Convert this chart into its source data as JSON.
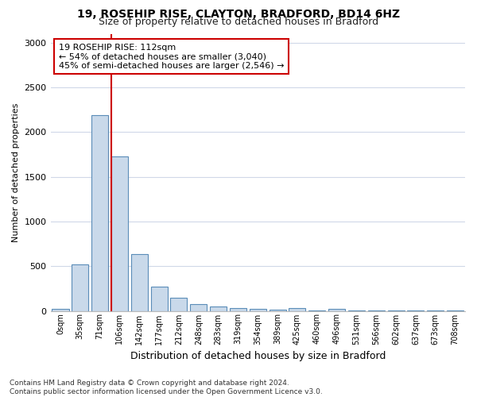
{
  "title1": "19, ROSEHIP RISE, CLAYTON, BRADFORD, BD14 6HZ",
  "title2": "Size of property relative to detached houses in Bradford",
  "xlabel": "Distribution of detached houses by size in Bradford",
  "ylabel": "Number of detached properties",
  "categories": [
    "0sqm",
    "35sqm",
    "71sqm",
    "106sqm",
    "142sqm",
    "177sqm",
    "212sqm",
    "248sqm",
    "283sqm",
    "319sqm",
    "354sqm",
    "389sqm",
    "425sqm",
    "460sqm",
    "496sqm",
    "531sqm",
    "566sqm",
    "602sqm",
    "637sqm",
    "673sqm",
    "708sqm"
  ],
  "values": [
    25,
    520,
    2190,
    1730,
    635,
    270,
    145,
    75,
    50,
    35,
    18,
    12,
    30,
    8,
    25,
    3,
    2,
    2,
    1,
    1,
    1
  ],
  "bar_color": "#c9d9ea",
  "bar_edge_color": "#5b8db8",
  "vline_color": "#cc0000",
  "vline_index": 3,
  "annotation_text": "19 ROSEHIP RISE: 112sqm\n← 54% of detached houses are smaller (3,040)\n45% of semi-detached houses are larger (2,546) →",
  "annotation_box_facecolor": "#ffffff",
  "annotation_box_edgecolor": "#cc0000",
  "ylim": [
    0,
    3100
  ],
  "yticks": [
    0,
    500,
    1000,
    1500,
    2000,
    2500,
    3000
  ],
  "bg_color": "#ffffff",
  "plot_bg": "#ffffff",
  "grid_color": "#d0d8e8",
  "footnote": "Contains HM Land Registry data © Crown copyright and database right 2024.\nContains public sector information licensed under the Open Government Licence v3.0."
}
